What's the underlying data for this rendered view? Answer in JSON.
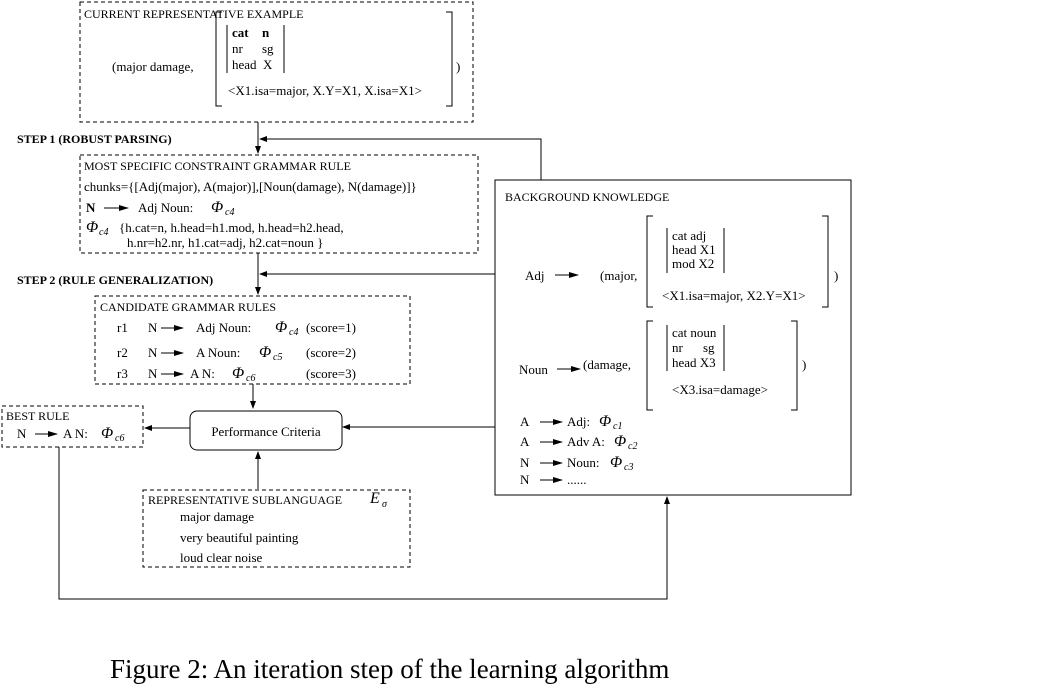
{
  "figure": {
    "caption": "Figure 2: An iteration step of the learning algorithm",
    "phi_symbol": "Φ",
    "current_example": {
      "title": "CURRENT REPRESENTATIVE  EXAMPLE",
      "open": "(major damage,",
      "fs_rows": [
        {
          "attr": "cat",
          "val": "n"
        },
        {
          "attr": "nr",
          "val": "sg"
        },
        {
          "attr": "head",
          "val": "X"
        }
      ],
      "semantics": "<X1.isa=major, X.Y=X1, X.isa=X1>",
      "close": ")"
    },
    "step1": "STEP 1 (ROBUST PARSING)",
    "most_specific": {
      "title": "MOST SPECIFIC CONSTRAINT GRAMMAR RULE",
      "chunks": "chunks={[Adj(major), A(major)],[Noun(damage), N(damage)]}",
      "rule_lhs": "N",
      "rule_rhs": "Adj  Noun:",
      "rule_sub": "c4",
      "phi_sub": "c4",
      "constraints_line1": "{h.cat=n, h.head=h1.mod, h.head=h2.head,",
      "constraints_line2": "h.nr=h2.nr, h1.cat=adj, h2.cat=noun }"
    },
    "step2": "STEP 2 (RULE GENERALIZATION)",
    "candidates": {
      "title": "CANDIDATE GRAMMAR RULES",
      "rules": [
        {
          "id": "r1",
          "lhs": "N",
          "rhs": "Adj   Noun:",
          "sub": "c4",
          "score": "(score=1)"
        },
        {
          "id": "r2",
          "lhs": "N",
          "rhs": "A  Noun:",
          "sub": "c5",
          "score": "(score=2)"
        },
        {
          "id": "r3",
          "lhs": "N",
          "rhs": "A  N:",
          "sub": "c6",
          "score": "(score=3)"
        }
      ]
    },
    "best_rule": {
      "title": "BEST RULE",
      "lhs": "N",
      "rhs": "A N:",
      "sub": "c6"
    },
    "performance": "Performance Criteria",
    "sublanguage": {
      "title": "REPRESENTATIVE SUBLANGUAGE",
      "symbol": "E",
      "symbol_sub": "σ",
      "examples": [
        "major damage",
        "very beautiful painting",
        "loud clear noise"
      ]
    },
    "background": {
      "title": "BACKGROUND KNOWLEDGE",
      "adj": {
        "label": "Adj",
        "open": "(major,",
        "fs_rows": [
          "cat adj",
          "head X1",
          "mod X2"
        ],
        "semantics": "<X1.isa=major, X2.Y=X1>",
        "close": ")"
      },
      "noun": {
        "label": "Noun",
        "open": "(damage,",
        "fs_rows": [
          {
            "attr": "cat noun",
            "val": ""
          },
          {
            "attr": "nr",
            "val": "sg"
          },
          {
            "attr": "head X3",
            "val": ""
          }
        ],
        "semantics": "<X3.isa=damage>",
        "close": ")"
      },
      "rules": [
        {
          "lhs": "A",
          "rhs": "Adj:",
          "sub": "c1"
        },
        {
          "lhs": "A",
          "rhs": "Adv A:",
          "sub": "c2"
        },
        {
          "lhs": "N",
          "rhs": "Noun:",
          "sub": "c3"
        },
        {
          "lhs": "N",
          "rhs": "......",
          "sub": ""
        }
      ]
    }
  }
}
